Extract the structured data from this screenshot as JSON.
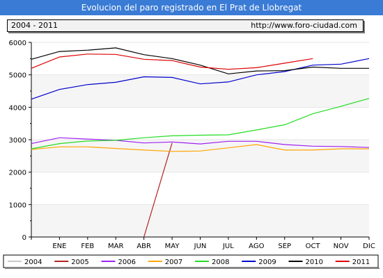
{
  "header": {
    "title": "Evolucion del paro registrado en El Prat de Llobregat",
    "period": "2004 - 2011",
    "url": "http://www.foro-ciudad.com"
  },
  "chart_data": {
    "type": "line",
    "title": "Evolucion del paro registrado en El Prat de Llobregat",
    "categories": [
      "",
      "ENE",
      "FEB",
      "MAR",
      "ABR",
      "MAY",
      "JUN",
      "JUL",
      "AGO",
      "SEP",
      "OCT",
      "NOV",
      "DIC"
    ],
    "yticks": [
      0,
      1000,
      2000,
      3000,
      4000,
      5000,
      6000
    ],
    "ylim": [
      0,
      6000
    ],
    "grid": "horizontal-bands",
    "legend_position": "bottom",
    "series": [
      {
        "name": "2004",
        "color": "#c8c8c8",
        "values": [
          null,
          null,
          null,
          null,
          null,
          null,
          null,
          null,
          null,
          null,
          null,
          null,
          null
        ]
      },
      {
        "name": "2005",
        "color": "#b22222",
        "values": [
          null,
          null,
          null,
          null,
          0,
          2900,
          null,
          null,
          null,
          null,
          null,
          null,
          null
        ]
      },
      {
        "name": "2006",
        "color": "#a020f0",
        "values": [
          2880,
          3060,
          3020,
          2980,
          2900,
          2930,
          2870,
          2950,
          2950,
          2850,
          2800,
          2790,
          2760
        ]
      },
      {
        "name": "2007",
        "color": "#ffa500",
        "values": [
          2700,
          2780,
          2780,
          2730,
          2680,
          2640,
          2650,
          2750,
          2850,
          2680,
          2680,
          2720,
          2720
        ]
      },
      {
        "name": "2008",
        "color": "#22dd22",
        "values": [
          2720,
          2880,
          2960,
          2980,
          3060,
          3120,
          3140,
          3150,
          3300,
          3460,
          3800,
          4030,
          4270
        ]
      },
      {
        "name": "2009",
        "color": "#0000cc",
        "values": [
          4250,
          4550,
          4700,
          4770,
          4940,
          4920,
          4720,
          4780,
          5000,
          5100,
          5300,
          5330,
          5500
        ]
      },
      {
        "name": "2010",
        "color": "#000000",
        "values": [
          5480,
          5720,
          5760,
          5830,
          5620,
          5500,
          5300,
          5030,
          5120,
          5130,
          5240,
          5200,
          5200
        ]
      },
      {
        "name": "2011",
        "color": "#dd0000",
        "values": [
          5200,
          5550,
          5640,
          5630,
          5480,
          5440,
          5240,
          5170,
          5220,
          5360,
          5500,
          null,
          null
        ]
      }
    ]
  }
}
